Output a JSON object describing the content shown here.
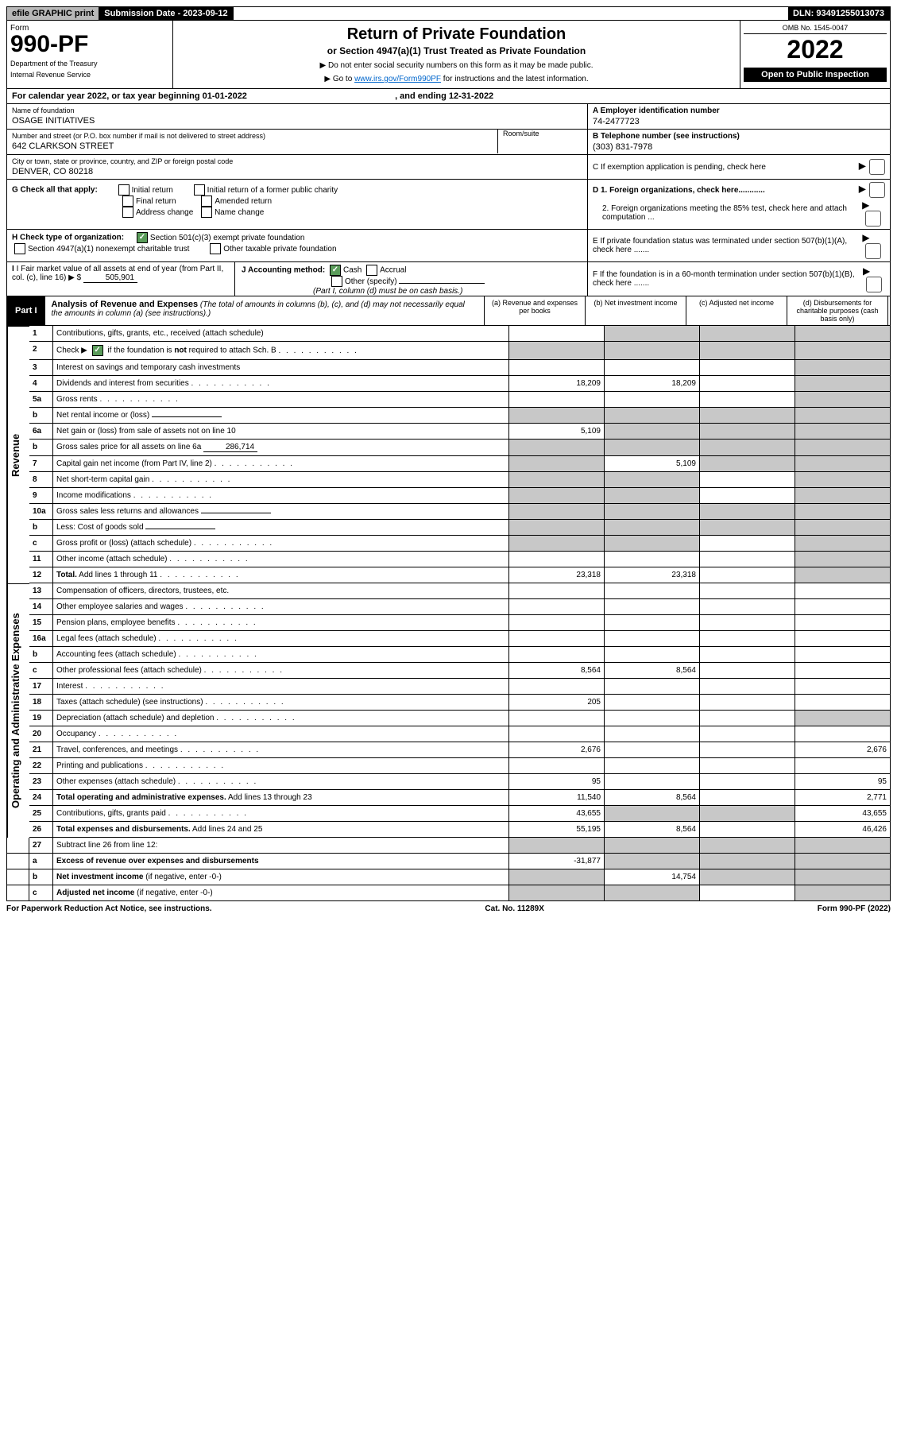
{
  "topbar": {
    "efile": "efile GRAPHIC print",
    "submission": "Submission Date - 2023-09-12",
    "dln": "DLN: 93491255013073"
  },
  "header": {
    "form_label": "Form",
    "form_number": "990-PF",
    "dept1": "Department of the Treasury",
    "dept2": "Internal Revenue Service",
    "title": "Return of Private Foundation",
    "subtitle": "or Section 4947(a)(1) Trust Treated as Private Foundation",
    "instr1": "▶ Do not enter social security numbers on this form as it may be made public.",
    "instr2_pre": "▶ Go to ",
    "instr2_link": "www.irs.gov/Form990PF",
    "instr2_post": " for instructions and the latest information.",
    "omb": "OMB No. 1545-0047",
    "year": "2022",
    "inspection": "Open to Public Inspection"
  },
  "period": {
    "text_pre": "For calendar year 2022, or tax year beginning ",
    "begin": "01-01-2022",
    "text_mid": " , and ending ",
    "end": "12-31-2022"
  },
  "foundation": {
    "name_label": "Name of foundation",
    "name": "OSAGE INITIATIVES",
    "addr_label": "Number and street (or P.O. box number if mail is not delivered to street address)",
    "suite_label": "Room/suite",
    "addr": "642 CLARKSON STREET",
    "city_label": "City or town, state or province, country, and ZIP or foreign postal code",
    "city": "DENVER, CO  80218"
  },
  "right_info": {
    "a_label": "A Employer identification number",
    "a_value": "74-2477723",
    "b_label": "B Telephone number (see instructions)",
    "b_value": "(303) 831-7978",
    "c_label": "C If exemption application is pending, check here",
    "d1_label": "D 1. Foreign organizations, check here............",
    "d2_label": "2. Foreign organizations meeting the 85% test, check here and attach computation ...",
    "e_label": "E  If private foundation status was terminated under section 507(b)(1)(A), check here .......",
    "f_label": "F  If the foundation is in a 60-month termination under section 507(b)(1)(B), check here ......."
  },
  "g": {
    "label": "G Check all that apply:",
    "opts": [
      "Initial return",
      "Final return",
      "Address change",
      "Initial return of a former public charity",
      "Amended return",
      "Name change"
    ]
  },
  "h": {
    "label": "H Check type of organization:",
    "opt1": "Section 501(c)(3) exempt private foundation",
    "opt2": "Section 4947(a)(1) nonexempt charitable trust",
    "opt3": "Other taxable private foundation"
  },
  "i": {
    "label": "I Fair market value of all assets at end of year (from Part II, col. (c), line 16)",
    "value": "505,901"
  },
  "j": {
    "label": "J Accounting method:",
    "cash": "Cash",
    "accrual": "Accrual",
    "other": "Other (specify)",
    "note": "(Part I, column (d) must be on cash basis.)"
  },
  "part1": {
    "header": "Part I",
    "title": "Analysis of Revenue and Expenses",
    "note": " (The total of amounts in columns (b), (c), and (d) may not necessarily equal the amounts in column (a) (see instructions).)",
    "col_a": "(a) Revenue and expenses per books",
    "col_b": "(b) Net investment income",
    "col_c": "(c) Adjusted net income",
    "col_d": "(d) Disbursements for charitable purposes (cash basis only)"
  },
  "sidelabels": {
    "revenue": "Revenue",
    "expenses": "Operating and Administrative Expenses"
  },
  "rows": [
    {
      "n": "1",
      "d": "Contributions, gifts, grants, etc., received (attach schedule)",
      "a": "",
      "b": "grey",
      "c": "grey",
      "dd": "grey"
    },
    {
      "n": "2",
      "d": "Check ▶ ☑ if the foundation is <b>not</b> required to attach Sch. B",
      "a": "grey",
      "b": "grey",
      "c": "grey",
      "dd": "grey",
      "check": true
    },
    {
      "n": "3",
      "d": "Interest on savings and temporary cash investments",
      "a": "",
      "b": "",
      "c": "",
      "dd": "grey"
    },
    {
      "n": "4",
      "d": "Dividends and interest from securities",
      "a": "18,209",
      "b": "18,209",
      "c": "",
      "dd": "grey"
    },
    {
      "n": "5a",
      "d": "Gross rents",
      "a": "",
      "b": "",
      "c": "",
      "dd": "grey"
    },
    {
      "n": "b",
      "d": "Net rental income or (loss)",
      "a": "grey",
      "b": "grey",
      "c": "grey",
      "dd": "grey",
      "inline": true
    },
    {
      "n": "6a",
      "d": "Net gain or (loss) from sale of assets not on line 10",
      "a": "5,109",
      "b": "grey",
      "c": "grey",
      "dd": "grey"
    },
    {
      "n": "b",
      "d": "Gross sales price for all assets on line 6a",
      "a": "grey",
      "b": "grey",
      "c": "grey",
      "dd": "grey",
      "inline_val": "286,714"
    },
    {
      "n": "7",
      "d": "Capital gain net income (from Part IV, line 2)",
      "a": "grey",
      "b": "5,109",
      "c": "grey",
      "dd": "grey"
    },
    {
      "n": "8",
      "d": "Net short-term capital gain",
      "a": "grey",
      "b": "grey",
      "c": "",
      "dd": "grey"
    },
    {
      "n": "9",
      "d": "Income modifications",
      "a": "grey",
      "b": "grey",
      "c": "",
      "dd": "grey"
    },
    {
      "n": "10a",
      "d": "Gross sales less returns and allowances",
      "a": "grey",
      "b": "grey",
      "c": "grey",
      "dd": "grey",
      "inline": true
    },
    {
      "n": "b",
      "d": "Less: Cost of goods sold",
      "a": "grey",
      "b": "grey",
      "c": "grey",
      "dd": "grey",
      "inline": true
    },
    {
      "n": "c",
      "d": "Gross profit or (loss) (attach schedule)",
      "a": "grey",
      "b": "grey",
      "c": "",
      "dd": "grey"
    },
    {
      "n": "11",
      "d": "Other income (attach schedule)",
      "a": "",
      "b": "",
      "c": "",
      "dd": "grey"
    },
    {
      "n": "12",
      "d": "<b>Total.</b> Add lines 1 through 11",
      "a": "23,318",
      "b": "23,318",
      "c": "",
      "dd": "grey"
    }
  ],
  "exp_rows": [
    {
      "n": "13",
      "d": "Compensation of officers, directors, trustees, etc.",
      "a": "",
      "b": "",
      "c": "",
      "dd": ""
    },
    {
      "n": "14",
      "d": "Other employee salaries and wages",
      "a": "",
      "b": "",
      "c": "",
      "dd": ""
    },
    {
      "n": "15",
      "d": "Pension plans, employee benefits",
      "a": "",
      "b": "",
      "c": "",
      "dd": ""
    },
    {
      "n": "16a",
      "d": "Legal fees (attach schedule)",
      "a": "",
      "b": "",
      "c": "",
      "dd": ""
    },
    {
      "n": "b",
      "d": "Accounting fees (attach schedule)",
      "a": "",
      "b": "",
      "c": "",
      "dd": ""
    },
    {
      "n": "c",
      "d": "Other professional fees (attach schedule)",
      "a": "8,564",
      "b": "8,564",
      "c": "",
      "dd": ""
    },
    {
      "n": "17",
      "d": "Interest",
      "a": "",
      "b": "",
      "c": "",
      "dd": ""
    },
    {
      "n": "18",
      "d": "Taxes (attach schedule) (see instructions)",
      "a": "205",
      "b": "",
      "c": "",
      "dd": ""
    },
    {
      "n": "19",
      "d": "Depreciation (attach schedule) and depletion",
      "a": "",
      "b": "",
      "c": "",
      "dd": "grey"
    },
    {
      "n": "20",
      "d": "Occupancy",
      "a": "",
      "b": "",
      "c": "",
      "dd": ""
    },
    {
      "n": "21",
      "d": "Travel, conferences, and meetings",
      "a": "2,676",
      "b": "",
      "c": "",
      "dd": "2,676"
    },
    {
      "n": "22",
      "d": "Printing and publications",
      "a": "",
      "b": "",
      "c": "",
      "dd": ""
    },
    {
      "n": "23",
      "d": "Other expenses (attach schedule)",
      "a": "95",
      "b": "",
      "c": "",
      "dd": "95"
    },
    {
      "n": "24",
      "d": "<b>Total operating and administrative expenses.</b> Add lines 13 through 23",
      "a": "11,540",
      "b": "8,564",
      "c": "",
      "dd": "2,771"
    },
    {
      "n": "25",
      "d": "Contributions, gifts, grants paid",
      "a": "43,655",
      "b": "grey",
      "c": "grey",
      "dd": "43,655"
    },
    {
      "n": "26",
      "d": "<b>Total expenses and disbursements.</b> Add lines 24 and 25",
      "a": "55,195",
      "b": "8,564",
      "c": "",
      "dd": "46,426"
    }
  ],
  "bottom_rows": [
    {
      "n": "27",
      "d": "Subtract line 26 from line 12:",
      "a": "grey",
      "b": "grey",
      "c": "grey",
      "dd": "grey"
    },
    {
      "n": "a",
      "d": "<b>Excess of revenue over expenses and disbursements</b>",
      "a": "-31,877",
      "b": "grey",
      "c": "grey",
      "dd": "grey"
    },
    {
      "n": "b",
      "d": "<b>Net investment income</b> (if negative, enter -0-)",
      "a": "grey",
      "b": "14,754",
      "c": "grey",
      "dd": "grey"
    },
    {
      "n": "c",
      "d": "<b>Adjusted net income</b> (if negative, enter -0-)",
      "a": "grey",
      "b": "grey",
      "c": "",
      "dd": "grey"
    }
  ],
  "footer": {
    "left": "For Paperwork Reduction Act Notice, see instructions.",
    "mid": "Cat. No. 11289X",
    "right": "Form 990-PF (2022)"
  }
}
